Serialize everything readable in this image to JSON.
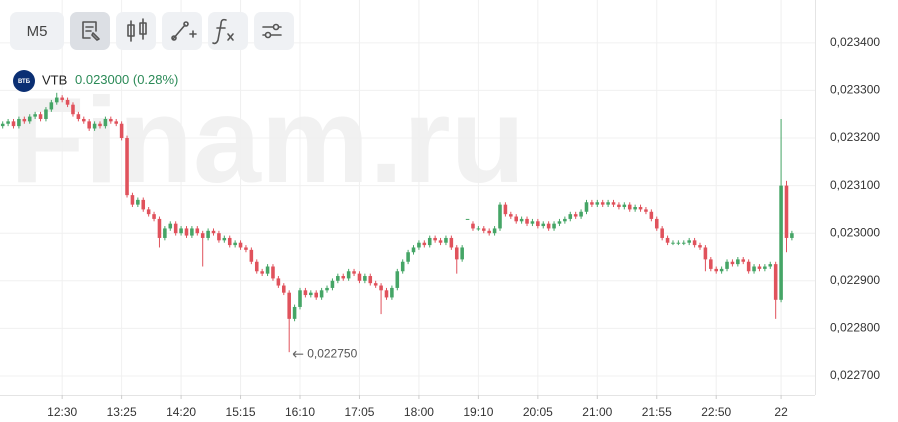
{
  "toolbar": {
    "interval": "M5"
  },
  "symbol": {
    "badge": "ВТБ",
    "name": "VTB",
    "price": "0.023000",
    "change": "(0.28%)"
  },
  "watermark": "Finam.ru",
  "chart_data": {
    "type": "candlestick",
    "up_color": "#45a566",
    "down_color": "#e0525c",
    "grid": true,
    "xlim": [
      -0.5,
      147.5
    ],
    "xticks": [
      {
        "value": 11,
        "label": "12:30"
      },
      {
        "value": 22,
        "label": "13:25"
      },
      {
        "value": 33,
        "label": "14:20"
      },
      {
        "value": 44,
        "label": "15:15"
      },
      {
        "value": 55,
        "label": "16:10"
      },
      {
        "value": 66,
        "label": "17:05"
      },
      {
        "value": 77,
        "label": "18:00"
      },
      {
        "value": 88,
        "label": "19:10"
      },
      {
        "value": 99,
        "label": "20:05"
      },
      {
        "value": 110,
        "label": "21:00"
      },
      {
        "value": 121,
        "label": "21:55"
      },
      {
        "value": 132,
        "label": "22:50"
      },
      {
        "value": 144,
        "label": "22"
      }
    ],
    "ylim": [
      0.02266,
      0.02349
    ],
    "yticks": [
      {
        "value": 0.0234,
        "label": "0,023400"
      },
      {
        "value": 0.0233,
        "label": "0,023300"
      },
      {
        "value": 0.0232,
        "label": "0,023200"
      },
      {
        "value": 0.0231,
        "label": "0,023100"
      },
      {
        "value": 0.023,
        "label": "0,023000"
      },
      {
        "value": 0.0229,
        "label": "0,022900"
      },
      {
        "value": 0.0228,
        "label": "0,022800"
      },
      {
        "value": 0.0227,
        "label": "0,022700"
      }
    ],
    "annotations": [
      {
        "x": 53,
        "y": 0.02275,
        "label": "0,022750"
      }
    ],
    "candles": [
      [
        0.023225,
        0.023235,
        0.02322,
        0.02323
      ],
      [
        0.02323,
        0.02324,
        0.023225,
        0.023235
      ],
      [
        0.023235,
        0.02324,
        0.02322,
        0.023225
      ],
      [
        0.023225,
        0.023245,
        0.02322,
        0.02324
      ],
      [
        0.02324,
        0.023245,
        0.02323,
        0.023235
      ],
      [
        0.023235,
        0.02325,
        0.02323,
        0.023245
      ],
      [
        0.023245,
        0.023255,
        0.02324,
        0.02325
      ],
      [
        0.02325,
        0.023255,
        0.023235,
        0.02324
      ],
      [
        0.02324,
        0.023265,
        0.023235,
        0.02326
      ],
      [
        0.02326,
        0.02328,
        0.023255,
        0.023275
      ],
      [
        0.023275,
        0.023295,
        0.02327,
        0.023285
      ],
      [
        0.023285,
        0.02329,
        0.023275,
        0.02328
      ],
      [
        0.02328,
        0.023285,
        0.023265,
        0.02327
      ],
      [
        0.02327,
        0.023275,
        0.023245,
        0.02325
      ],
      [
        0.02325,
        0.023255,
        0.023235,
        0.02324
      ],
      [
        0.02324,
        0.023245,
        0.02323,
        0.023235
      ],
      [
        0.023235,
        0.02324,
        0.023215,
        0.02322
      ],
      [
        0.02322,
        0.023235,
        0.023215,
        0.02323
      ],
      [
        0.02323,
        0.023235,
        0.02322,
        0.023225
      ],
      [
        0.023225,
        0.023245,
        0.02322,
        0.02324
      ],
      [
        0.02324,
        0.023245,
        0.02323,
        0.023235
      ],
      [
        0.023235,
        0.02324,
        0.023225,
        0.02323
      ],
      [
        0.02323,
        0.023235,
        0.023195,
        0.0232
      ],
      [
        0.0232,
        0.023205,
        0.023075,
        0.02308
      ],
      [
        0.02308,
        0.023085,
        0.023055,
        0.02306
      ],
      [
        0.02306,
        0.023075,
        0.023055,
        0.02307
      ],
      [
        0.02307,
        0.023075,
        0.023045,
        0.02305
      ],
      [
        0.02305,
        0.023055,
        0.023035,
        0.02304
      ],
      [
        0.02304,
        0.023045,
        0.023025,
        0.02303
      ],
      [
        0.02303,
        0.023035,
        0.02297,
        0.02299
      ],
      [
        0.02299,
        0.023015,
        0.022985,
        0.02301
      ],
      [
        0.02301,
        0.023025,
        0.023005,
        0.02302
      ],
      [
        0.02302,
        0.023025,
        0.022995,
        0.023
      ],
      [
        0.023,
        0.023015,
        0.022995,
        0.02301
      ],
      [
        0.02301,
        0.023015,
        0.02299,
        0.022995
      ],
      [
        0.022995,
        0.023015,
        0.02299,
        0.02301
      ],
      [
        0.02301,
        0.023015,
        0.022995,
        0.023
      ],
      [
        0.023,
        0.023005,
        0.02293,
        0.02299
      ],
      [
        0.02299,
        0.02301,
        0.022985,
        0.023005
      ],
      [
        0.023005,
        0.02301,
        0.022995,
        0.023
      ],
      [
        0.023,
        0.023005,
        0.02298,
        0.022985
      ],
      [
        0.022985,
        0.022995,
        0.02298,
        0.02299
      ],
      [
        0.02299,
        0.022995,
        0.02297,
        0.022975
      ],
      [
        0.022975,
        0.022985,
        0.02297,
        0.02298
      ],
      [
        0.02298,
        0.022985,
        0.022965,
        0.02297
      ],
      [
        0.02297,
        0.022975,
        0.02296,
        0.022965
      ],
      [
        0.022965,
        0.02297,
        0.022935,
        0.02294
      ],
      [
        0.02294,
        0.022945,
        0.022915,
        0.02292
      ],
      [
        0.02292,
        0.022925,
        0.02291,
        0.022915
      ],
      [
        0.022915,
        0.022935,
        0.02291,
        0.02293
      ],
      [
        0.02293,
        0.022935,
        0.0229,
        0.022905
      ],
      [
        0.022905,
        0.02291,
        0.022885,
        0.02289
      ],
      [
        0.02289,
        0.022895,
        0.02287,
        0.022875
      ],
      [
        0.022875,
        0.02288,
        0.02275,
        0.02282
      ],
      [
        0.02282,
        0.02285,
        0.022815,
        0.022845
      ],
      [
        0.022845,
        0.022885,
        0.02284,
        0.02288
      ],
      [
        0.02288,
        0.022885,
        0.022865,
        0.02287
      ],
      [
        0.02287,
        0.02288,
        0.022865,
        0.022875
      ],
      [
        0.022875,
        0.02288,
        0.02286,
        0.022865
      ],
      [
        0.022865,
        0.022885,
        0.02286,
        0.02288
      ],
      [
        0.02288,
        0.02289,
        0.022875,
        0.022885
      ],
      [
        0.022885,
        0.022905,
        0.02288,
        0.0229
      ],
      [
        0.0229,
        0.022915,
        0.022895,
        0.02291
      ],
      [
        0.02291,
        0.022915,
        0.0229,
        0.022905
      ],
      [
        0.022905,
        0.022925,
        0.0229,
        0.02292
      ],
      [
        0.02292,
        0.022925,
        0.02291,
        0.022915
      ],
      [
        0.022915,
        0.02292,
        0.022895,
        0.0229
      ],
      [
        0.0229,
        0.022915,
        0.022895,
        0.02291
      ],
      [
        0.02291,
        0.022915,
        0.02289,
        0.022895
      ],
      [
        0.022895,
        0.0229,
        0.022885,
        0.02289
      ],
      [
        0.02289,
        0.022895,
        0.02283,
        0.02288
      ],
      [
        0.02288,
        0.022885,
        0.02286,
        0.022865
      ],
      [
        0.022865,
        0.02289,
        0.02286,
        0.022885
      ],
      [
        0.022885,
        0.022925,
        0.02288,
        0.02292
      ],
      [
        0.02292,
        0.022945,
        0.022915,
        0.02294
      ],
      [
        0.02294,
        0.022965,
        0.022935,
        0.02296
      ],
      [
        0.02296,
        0.022975,
        0.022955,
        0.02297
      ],
      [
        0.02297,
        0.022985,
        0.022965,
        0.02298
      ],
      [
        0.02298,
        0.022985,
        0.02297,
        0.022975
      ],
      [
        0.022975,
        0.022995,
        0.02297,
        0.02299
      ],
      [
        0.02299,
        0.022995,
        0.02298,
        0.022985
      ],
      [
        0.022985,
        0.02299,
        0.022975,
        0.02298
      ],
      [
        0.02298,
        0.022995,
        0.022975,
        0.02299
      ],
      [
        0.02299,
        0.022995,
        0.022965,
        0.02297
      ],
      [
        0.02297,
        0.022975,
        0.022915,
        0.022945
      ],
      [
        0.022945,
        0.022975,
        0.02294,
        0.02297
      ],
      [
        0.02303,
        0.02303,
        0.02303,
        0.02303
      ],
      [
        0.02302,
        0.023025,
        0.023005,
        0.02301
      ],
      [
        0.02301,
        0.023015,
        0.023005,
        0.02301
      ],
      [
        0.02301,
        0.023015,
        0.023,
        0.023005
      ],
      [
        0.023005,
        0.02301,
        0.022995,
        0.023
      ],
      [
        0.023,
        0.023015,
        0.022995,
        0.02301
      ],
      [
        0.02301,
        0.023065,
        0.023005,
        0.02306
      ],
      [
        0.02306,
        0.023065,
        0.023035,
        0.02304
      ],
      [
        0.02304,
        0.023045,
        0.02303,
        0.023035
      ],
      [
        0.023035,
        0.02304,
        0.02302,
        0.023025
      ],
      [
        0.023025,
        0.023035,
        0.02302,
        0.02303
      ],
      [
        0.02303,
        0.023035,
        0.023015,
        0.02302
      ],
      [
        0.02302,
        0.02303,
        0.023015,
        0.023025
      ],
      [
        0.023025,
        0.02303,
        0.02301,
        0.023015
      ],
      [
        0.023015,
        0.023025,
        0.02301,
        0.02302
      ],
      [
        0.02302,
        0.023025,
        0.023005,
        0.02301
      ],
      [
        0.02301,
        0.023025,
        0.023005,
        0.02302
      ],
      [
        0.02302,
        0.02303,
        0.023015,
        0.023025
      ],
      [
        0.023025,
        0.023035,
        0.02302,
        0.02303
      ],
      [
        0.02303,
        0.023045,
        0.023025,
        0.02304
      ],
      [
        0.02304,
        0.023045,
        0.02303,
        0.023035
      ],
      [
        0.023035,
        0.02305,
        0.02303,
        0.023045
      ],
      [
        0.023045,
        0.02307,
        0.02304,
        0.023065
      ],
      [
        0.023065,
        0.02307,
        0.023055,
        0.02306
      ],
      [
        0.02306,
        0.02307,
        0.023055,
        0.023065
      ],
      [
        0.023065,
        0.02307,
        0.023055,
        0.02306
      ],
      [
        0.02306,
        0.02307,
        0.023055,
        0.023065
      ],
      [
        0.023065,
        0.02307,
        0.023055,
        0.02306
      ],
      [
        0.02306,
        0.023065,
        0.02305,
        0.023055
      ],
      [
        0.023055,
        0.023065,
        0.02305,
        0.02306
      ],
      [
        0.02306,
        0.023065,
        0.023045,
        0.02305
      ],
      [
        0.02305,
        0.02306,
        0.023045,
        0.023055
      ],
      [
        0.023055,
        0.02306,
        0.023045,
        0.02305
      ],
      [
        0.02305,
        0.023055,
        0.02304,
        0.023045
      ],
      [
        0.023045,
        0.02305,
        0.023025,
        0.02303
      ],
      [
        0.02303,
        0.023035,
        0.023005,
        0.02301
      ],
      [
        0.02301,
        0.023015,
        0.022985,
        0.02299
      ],
      [
        0.02299,
        0.022995,
        0.022975,
        0.02298
      ],
      [
        0.02298,
        0.022985,
        0.022975,
        0.02298
      ],
      [
        0.02298,
        0.022985,
        0.022975,
        0.02298
      ],
      [
        0.02298,
        0.022985,
        0.022975,
        0.02298
      ],
      [
        0.02298,
        0.02299,
        0.022975,
        0.022985
      ],
      [
        0.022985,
        0.02299,
        0.02297,
        0.022975
      ],
      [
        0.022975,
        0.02298,
        0.022965,
        0.02297
      ],
      [
        0.02297,
        0.022975,
        0.02292,
        0.022945
      ],
      [
        0.022945,
        0.02295,
        0.02292,
        0.022925
      ],
      [
        0.022925,
        0.02293,
        0.022915,
        0.02292
      ],
      [
        0.02292,
        0.02293,
        0.022915,
        0.022925
      ],
      [
        0.022925,
        0.022945,
        0.02292,
        0.02294
      ],
      [
        0.02294,
        0.022945,
        0.02293,
        0.022935
      ],
      [
        0.022935,
        0.02295,
        0.02293,
        0.022945
      ],
      [
        0.022945,
        0.02295,
        0.022935,
        0.02294
      ],
      [
        0.02294,
        0.022945,
        0.022915,
        0.02292
      ],
      [
        0.02292,
        0.022935,
        0.022915,
        0.02293
      ],
      [
        0.02293,
        0.022935,
        0.02292,
        0.022925
      ],
      [
        0.022925,
        0.022935,
        0.02292,
        0.02293
      ],
      [
        0.02293,
        0.02294,
        0.022925,
        0.022935
      ],
      [
        0.022935,
        0.02294,
        0.02282,
        0.02286
      ],
      [
        0.02286,
        0.02324,
        0.022855,
        0.0231
      ],
      [
        0.0231,
        0.02311,
        0.02296,
        0.02299
      ],
      [
        0.02299,
        0.023005,
        0.022985,
        0.023
      ]
    ]
  }
}
